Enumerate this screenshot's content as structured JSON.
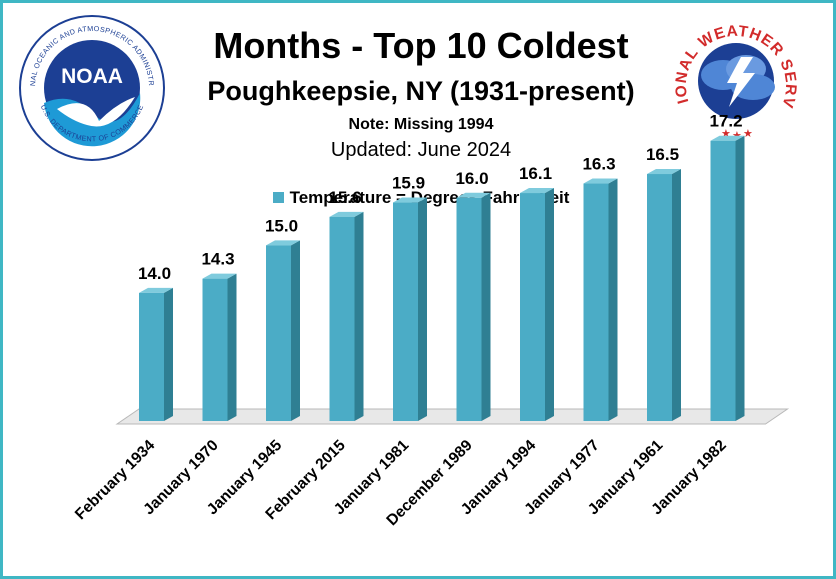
{
  "header": {
    "title": "Months - Top 10 Coldest",
    "subtitle": "Poughkeepsie, NY (1931-present)",
    "note": "Note: Missing 1994",
    "updated": "Updated: June 2024"
  },
  "logos": {
    "noaa_text": "NOAA",
    "noaa_ring": "NATIONAL OCEANIC AND ATMOSPHERIC ADMINISTRATION",
    "noaa_ring_bottom": "U.S. DEPARTMENT OF COMMERCE",
    "nws_ring": "NATIONAL WEATHER SERVICE"
  },
  "colors": {
    "frame": "#3fb7c4",
    "bar_front": "#4bacc6",
    "bar_side": "#2f7f93",
    "bar_top": "#7fcbdd",
    "floor": "#e8e8e8"
  },
  "chart_data": {
    "type": "bar",
    "categories": [
      "February 1934",
      "January 1970",
      "January 1945",
      "February 2015",
      "January 1981",
      "December 1989",
      "January 1994",
      "January 1977",
      "January 1961",
      "January 1982"
    ],
    "series": [
      {
        "name": "Temperature = Degrees Fahrenheit",
        "values": [
          14.0,
          14.3,
          15.0,
          15.6,
          15.9,
          16.0,
          16.1,
          16.3,
          16.5,
          17.2
        ]
      }
    ],
    "data_labels": [
      "14.0",
      "14.3",
      "15.0",
      "15.6",
      "15.9",
      "16.0",
      "16.1",
      "16.3",
      "16.5",
      "17.2"
    ],
    "title": "Months - Top 10 Coldest",
    "legend": "top",
    "grid": false,
    "ylim": [
      0,
      18
    ]
  }
}
